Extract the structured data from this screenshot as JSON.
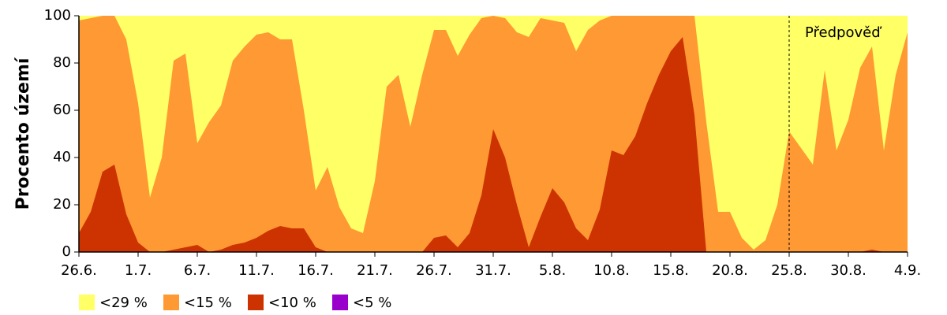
{
  "chart_data": {
    "type": "area",
    "ylabel": "Procento území",
    "categories": [
      "26.6.",
      null,
      null,
      null,
      null,
      "1.7.",
      null,
      null,
      null,
      null,
      "6.7.",
      null,
      null,
      null,
      null,
      "11.7.",
      null,
      null,
      null,
      null,
      "16.7.",
      null,
      null,
      null,
      null,
      "21.7.",
      null,
      null,
      null,
      null,
      "26.7.",
      null,
      null,
      null,
      null,
      "31.7.",
      null,
      null,
      null,
      null,
      "5.8.",
      null,
      null,
      null,
      null,
      "10.8.",
      null,
      null,
      null,
      null,
      "15.8.",
      null,
      null,
      null,
      null,
      "20.8.",
      null,
      null,
      null,
      null,
      "25.8.",
      null,
      null,
      null,
      null,
      "30.8.",
      null,
      null,
      null,
      null,
      "4.9."
    ],
    "series": [
      {
        "name": "<29 %",
        "color": "#ffff66",
        "values": [
          100,
          100,
          100,
          100,
          100,
          100,
          100,
          100,
          100,
          100,
          100,
          100,
          100,
          100,
          100,
          100,
          100,
          100,
          100,
          100,
          100,
          100,
          100,
          100,
          100,
          100,
          100,
          100,
          100,
          100,
          100,
          100,
          100,
          100,
          100,
          100,
          100,
          100,
          100,
          100,
          100,
          100,
          100,
          100,
          100,
          100,
          100,
          100,
          100,
          100,
          100,
          100,
          100,
          100,
          100,
          100,
          100,
          100,
          100,
          100,
          100,
          100,
          100,
          100,
          100,
          100,
          100,
          100,
          100,
          100,
          100
        ]
      },
      {
        "name": "<15 %",
        "color": "#ff9933",
        "values": [
          98,
          99,
          100,
          100,
          90,
          63,
          23,
          40,
          81,
          84,
          46,
          55,
          62,
          81,
          87,
          92,
          93,
          90,
          90,
          60,
          26,
          36,
          19,
          10,
          8,
          30,
          70,
          75,
          53,
          75,
          94,
          94,
          83,
          92,
          99,
          100,
          99,
          93,
          91,
          99,
          98,
          97,
          85,
          94,
          98,
          100,
          100,
          100,
          100,
          100,
          100,
          100,
          100,
          55,
          17,
          17,
          6,
          1,
          5,
          20,
          51,
          44,
          37,
          77,
          43,
          56,
          78,
          87,
          43,
          75,
          93
        ]
      },
      {
        "name": "<10 %",
        "color": "#cc3300",
        "values": [
          8,
          17,
          34,
          37,
          16,
          4,
          0,
          0,
          1,
          2,
          3,
          0,
          1,
          3,
          4,
          6,
          9,
          11,
          10,
          10,
          2,
          0,
          0,
          0,
          0,
          0,
          0,
          0,
          0,
          0,
          6,
          7,
          2,
          8,
          24,
          52,
          40,
          20,
          2,
          15,
          27,
          21,
          10,
          5,
          18,
          43,
          41,
          49,
          63,
          75,
          85,
          91,
          58,
          0,
          0,
          0,
          0,
          0,
          0,
          0,
          0,
          0,
          0,
          0,
          0,
          0,
          0,
          1,
          0,
          0,
          0
        ]
      },
      {
        "name": "<5 %",
        "color": "#9900cc",
        "values": [
          0,
          0,
          0,
          0,
          0,
          0,
          0,
          0,
          0,
          0,
          0,
          0,
          0,
          0,
          0,
          0,
          0,
          0,
          0,
          0,
          0,
          0,
          0,
          0,
          0,
          0,
          0,
          0,
          0,
          0,
          0,
          0,
          0,
          0,
          0,
          0,
          0,
          0,
          0,
          0,
          0,
          0,
          0,
          0,
          0,
          0,
          0,
          0,
          0,
          0,
          0,
          0,
          0,
          0,
          0,
          0,
          0,
          0,
          0,
          0,
          0,
          0,
          0,
          0,
          0,
          0,
          0,
          0,
          0,
          0,
          0
        ]
      }
    ],
    "ylim": [
      0,
      100
    ],
    "yticks": [
      0,
      20,
      40,
      60,
      80,
      100
    ],
    "annotation": {
      "text": "Předpověď",
      "at": "25.8."
    }
  }
}
